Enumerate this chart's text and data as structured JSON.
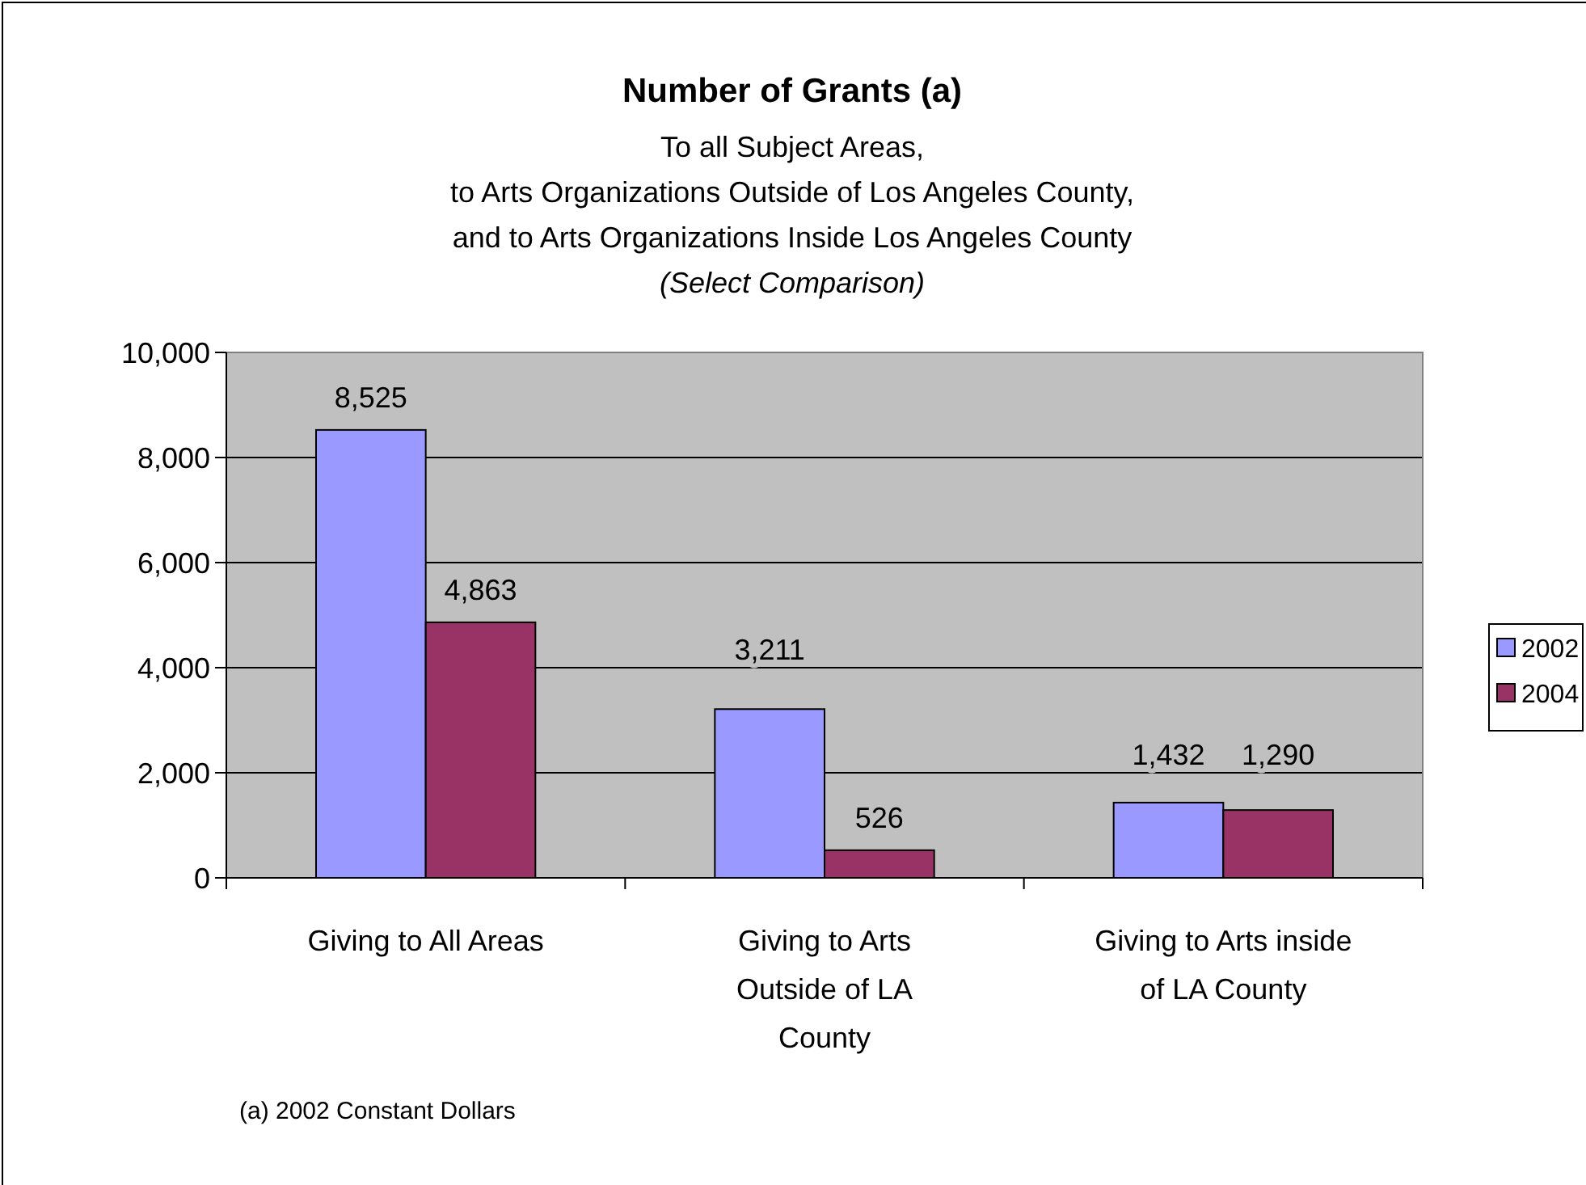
{
  "chart_data": {
    "type": "bar",
    "title": "Number of Grants (a)",
    "subtitle": "To all Subject Areas,\nto Arts Organizations Outside of Los Angeles County,\nand to Arts Organizations Inside Los Angeles County\n(Select Comparison)",
    "categories": [
      "Giving to All Areas",
      "Giving to Arts Outside of LA County",
      "Giving to Arts inside of LA County"
    ],
    "series": [
      {
        "name": "2002",
        "color": "#9999ff",
        "values": [
          8525,
          3211,
          1432
        ],
        "value_labels": [
          "8,525",
          "3,211",
          "1,432"
        ]
      },
      {
        "name": "2004",
        "color": "#993366",
        "values": [
          4863,
          526,
          1290
        ],
        "value_labels": [
          "4,863",
          "526",
          "1,290"
        ]
      }
    ],
    "ylim": [
      0,
      10000
    ],
    "yticks": [
      0,
      {
        "value": 2000,
        "label": "2,000"
      },
      {
        "value": 4000,
        "label": "4,000"
      },
      {
        "value": 6000,
        "label": "6,000"
      },
      {
        "value": 8000,
        "label": "8,000"
      },
      {
        "value": 10000,
        "label": "10,000"
      }
    ],
    "grid": "y",
    "legend": "right",
    "annotations": [
      "(a) 2002 Constant Dollars"
    ]
  }
}
